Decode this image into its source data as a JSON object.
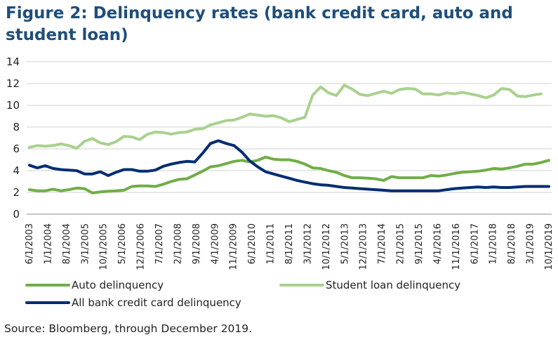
{
  "chart_data": {
    "type": "line",
    "title": "Figure 2: Delinquency rates (bank credit card, auto and student loan)",
    "source": "Source: Bloomberg, through December 2019.",
    "x_labels": [
      "6/1/2003",
      "1/1/2004",
      "8/1/2004",
      "3/1/2005",
      "10/1/2005",
      "5/1/2006",
      "12/1/2006",
      "7/1/2007",
      "2/1/2008",
      "9/1/2008",
      "4/1/2009",
      "11/1/2009",
      "6/1/2010",
      "1/1/2011",
      "8/1/2011",
      "3/1/2012",
      "10/1/2012",
      "5/1/2013",
      "12/1/2013",
      "7/1/2014",
      "2/1/2015",
      "9/1/2015",
      "4/1/2016",
      "11/1/2016",
      "6/1/2017",
      "1/1/2018",
      "8/1/2018",
      "3/1/2019",
      "10/1/2019"
    ],
    "ylim": [
      0,
      14
    ],
    "yticks": [
      0,
      2,
      4,
      6,
      8,
      10,
      12,
      14
    ],
    "grid": "horizontal",
    "legend": "bottom",
    "x_start": "2003-06",
    "series": [
      {
        "name": "Auto delinquency",
        "color": "#70ad47",
        "values": [
          2.25,
          2.15,
          2.15,
          2.3,
          2.15,
          2.25,
          2.4,
          2.35,
          1.95,
          2.05,
          2.1,
          2.15,
          2.2,
          2.55,
          2.6,
          2.6,
          2.55,
          2.75,
          3.0,
          3.2,
          3.25,
          3.6,
          3.95,
          4.35,
          4.45,
          4.65,
          4.85,
          4.95,
          4.8,
          4.95,
          5.25,
          5.05,
          5.0,
          5.0,
          4.85,
          4.6,
          4.25,
          4.2,
          4.0,
          3.85,
          3.55,
          3.35,
          3.35,
          3.3,
          3.25,
          3.1,
          3.45,
          3.35,
          3.35,
          3.35,
          3.35,
          3.55,
          3.5,
          3.6,
          3.75,
          3.85,
          3.9,
          3.95,
          4.05,
          4.2,
          4.15,
          4.25,
          4.4,
          4.6,
          4.6,
          4.75,
          4.95
        ]
      },
      {
        "name": "Student loan delinquency",
        "color": "#a9d18e",
        "values": [
          6.15,
          6.3,
          6.25,
          6.3,
          6.45,
          6.3,
          6.05,
          6.7,
          6.95,
          6.55,
          6.4,
          6.65,
          7.15,
          7.1,
          6.85,
          7.35,
          7.55,
          7.5,
          7.35,
          7.5,
          7.55,
          7.8,
          7.85,
          8.2,
          8.4,
          8.6,
          8.65,
          8.9,
          9.2,
          9.1,
          9.0,
          9.05,
          8.85,
          8.5,
          8.7,
          8.9,
          10.95,
          11.7,
          11.15,
          10.9,
          11.85,
          11.5,
          11.0,
          10.9,
          11.1,
          11.3,
          11.1,
          11.45,
          11.55,
          11.5,
          11.05,
          11.05,
          10.95,
          11.15,
          11.05,
          11.2,
          11.05,
          10.9,
          10.7,
          10.95,
          11.55,
          11.45,
          10.85,
          10.8,
          10.95,
          11.05
        ]
      },
      {
        "name": "All bank credit card delinquency",
        "color": "#002d72",
        "values": [
          4.5,
          4.25,
          4.45,
          4.2,
          4.1,
          4.05,
          4.0,
          3.7,
          3.7,
          3.9,
          3.55,
          3.85,
          4.1,
          4.1,
          3.95,
          3.95,
          4.05,
          4.4,
          4.6,
          4.75,
          4.85,
          4.8,
          5.6,
          6.5,
          6.75,
          6.5,
          6.3,
          5.7,
          4.9,
          4.35,
          3.9,
          3.7,
          3.5,
          3.3,
          3.1,
          2.95,
          2.8,
          2.7,
          2.65,
          2.55,
          2.45,
          2.4,
          2.35,
          2.3,
          2.25,
          2.2,
          2.15,
          2.15,
          2.15,
          2.15,
          2.15,
          2.15,
          2.15,
          2.25,
          2.35,
          2.4,
          2.45,
          2.5,
          2.45,
          2.5,
          2.45,
          2.45,
          2.5,
          2.55,
          2.55,
          2.55,
          2.55
        ]
      }
    ]
  }
}
